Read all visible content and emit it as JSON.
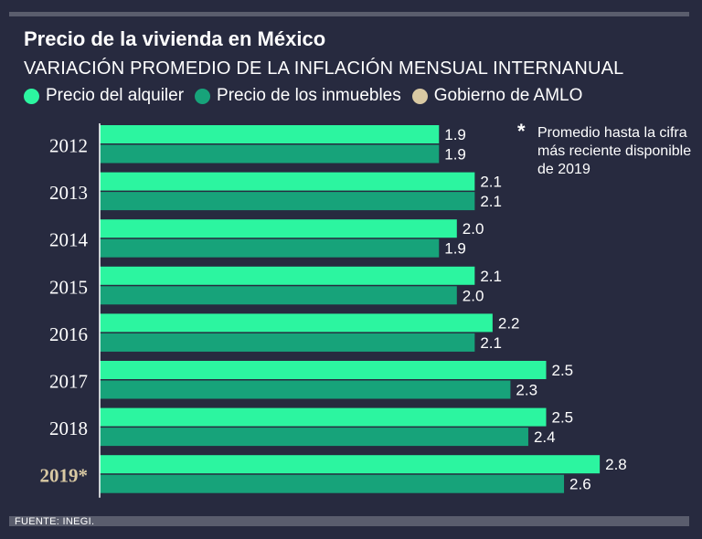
{
  "title": "Precio de la vivienda en México",
  "subtitle": "VARIACIÓN PROMEDIO DE LA INFLACIÓN MENSUAL INTERNANUAL",
  "legend": [
    {
      "label": "Precio del alquiler",
      "color": "#2cf5a0"
    },
    {
      "label": "Precio de los inmuebles",
      "color": "#17a37a"
    },
    {
      "label": "Gobierno de AMLO",
      "color": "#d9c9a3"
    }
  ],
  "footnote": {
    "marker": "*",
    "text": "Promedio hasta la cifra más reciente disponible de 2019"
  },
  "source": "FUENTE: INEGI.",
  "colors": {
    "background": "#272a3f",
    "alquiler": "#2cf5a0",
    "inmuebles": "#17a37a",
    "amlo": "#d9c9a3",
    "rule": "#5a5d6d"
  },
  "chart_data": {
    "type": "bar",
    "orientation": "horizontal",
    "categories": [
      "2012",
      "2013",
      "2014",
      "2015",
      "2016",
      "2017",
      "2018",
      "2019*"
    ],
    "highlighted_category": "2019*",
    "series": [
      {
        "name": "Precio del alquiler",
        "values": [
          1.9,
          2.1,
          2.0,
          2.1,
          2.2,
          2.5,
          2.5,
          2.8
        ]
      },
      {
        "name": "Precio de los inmuebles",
        "values": [
          1.9,
          2.1,
          1.9,
          2.0,
          2.1,
          2.3,
          2.4,
          2.6
        ]
      }
    ],
    "value_labels": [
      [
        "1.9",
        "2.1",
        "2.0",
        "2.1",
        "2.2",
        "2.5",
        "2.5",
        "2.8"
      ],
      [
        "1.9",
        "2.1",
        "1.9",
        "2.0",
        "2.1",
        "2.3",
        "2.4",
        "2.6"
      ]
    ],
    "xlim": [
      0,
      2.8
    ],
    "title": "Precio de la vivienda en México",
    "xlabel": "",
    "ylabel": "",
    "grid": false
  }
}
